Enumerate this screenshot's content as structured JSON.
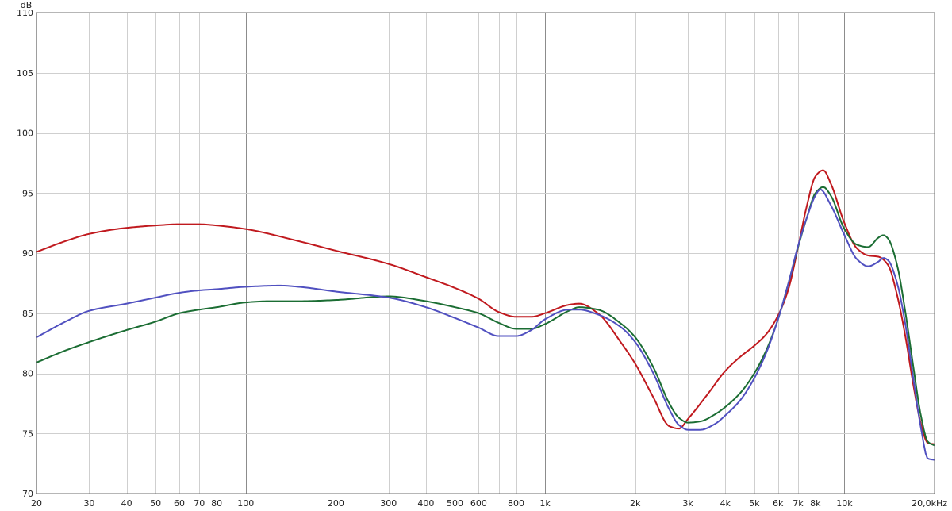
{
  "chart_data": {
    "type": "line",
    "x_scale": "log",
    "xlim": [
      20,
      20000
    ],
    "ylim": [
      70,
      110
    ],
    "ylabel": "dB",
    "x_unit_label": "20,0kHz",
    "grid": true,
    "y_ticks": [
      70,
      75,
      80,
      85,
      90,
      95,
      100,
      105,
      110
    ],
    "x_ticks": [
      {
        "value": 20,
        "label": "20"
      },
      {
        "value": 30,
        "label": "30"
      },
      {
        "value": 40,
        "label": "40"
      },
      {
        "value": 50,
        "label": "50"
      },
      {
        "value": 60,
        "label": "60"
      },
      {
        "value": 70,
        "label": "70"
      },
      {
        "value": 80,
        "label": "80"
      },
      {
        "value": 100,
        "label": "100"
      },
      {
        "value": 200,
        "label": "200"
      },
      {
        "value": 300,
        "label": "300"
      },
      {
        "value": 400,
        "label": "400"
      },
      {
        "value": 500,
        "label": "500"
      },
      {
        "value": 600,
        "label": "600"
      },
      {
        "value": 800,
        "label": "800"
      },
      {
        "value": 1000,
        "label": "1k"
      },
      {
        "value": 2000,
        "label": "2k"
      },
      {
        "value": 3000,
        "label": "3k"
      },
      {
        "value": 4000,
        "label": "4k"
      },
      {
        "value": 5000,
        "label": "5k"
      },
      {
        "value": 6000,
        "label": "6k"
      },
      {
        "value": 7000,
        "label": "7k"
      },
      {
        "value": 8000,
        "label": "8k"
      },
      {
        "value": 10000,
        "label": "10k"
      }
    ],
    "series": [
      {
        "color": "#c0191e",
        "points": [
          [
            20,
            90.1
          ],
          [
            25,
            91.0
          ],
          [
            30,
            91.6
          ],
          [
            40,
            92.1
          ],
          [
            50,
            92.3
          ],
          [
            60,
            92.4
          ],
          [
            70,
            92.4
          ],
          [
            80,
            92.3
          ],
          [
            100,
            92.0
          ],
          [
            150,
            91.0
          ],
          [
            200,
            90.2
          ],
          [
            300,
            89.1
          ],
          [
            400,
            88.0
          ],
          [
            500,
            87.1
          ],
          [
            600,
            86.2
          ],
          [
            700,
            85.1
          ],
          [
            800,
            84.7
          ],
          [
            900,
            84.7
          ],
          [
            1000,
            85.0
          ],
          [
            1200,
            85.7
          ],
          [
            1300,
            85.8
          ],
          [
            1500,
            85.0
          ],
          [
            1800,
            82.5
          ],
          [
            2000,
            80.8
          ],
          [
            2300,
            78.0
          ],
          [
            2600,
            75.6
          ],
          [
            2800,
            75.4
          ],
          [
            3000,
            76.2
          ],
          [
            3500,
            78.3
          ],
          [
            4000,
            80.2
          ],
          [
            4500,
            81.4
          ],
          [
            5000,
            82.3
          ],
          [
            5500,
            83.3
          ],
          [
            6000,
            84.8
          ],
          [
            6500,
            87.0
          ],
          [
            7000,
            90.5
          ],
          [
            7500,
            94.0
          ],
          [
            8000,
            96.4
          ],
          [
            8500,
            96.9
          ],
          [
            9000,
            95.8
          ],
          [
            10000,
            92.5
          ],
          [
            11000,
            90.4
          ],
          [
            12000,
            89.8
          ],
          [
            13000,
            89.7
          ],
          [
            14000,
            89.0
          ],
          [
            15000,
            86.5
          ],
          [
            16000,
            83.0
          ],
          [
            17000,
            79.0
          ],
          [
            18000,
            75.8
          ],
          [
            19000,
            74.2
          ],
          [
            20000,
            74.1
          ]
        ]
      },
      {
        "color": "#1b6d33",
        "points": [
          [
            20,
            80.9
          ],
          [
            25,
            81.9
          ],
          [
            30,
            82.6
          ],
          [
            40,
            83.6
          ],
          [
            50,
            84.3
          ],
          [
            60,
            85.0
          ],
          [
            70,
            85.3
          ],
          [
            80,
            85.5
          ],
          [
            100,
            85.9
          ],
          [
            120,
            86.0
          ],
          [
            150,
            86.0
          ],
          [
            200,
            86.1
          ],
          [
            300,
            86.4
          ],
          [
            400,
            86.0
          ],
          [
            500,
            85.5
          ],
          [
            600,
            85.0
          ],
          [
            700,
            84.2
          ],
          [
            800,
            83.7
          ],
          [
            900,
            83.7
          ],
          [
            1000,
            84.1
          ],
          [
            1200,
            85.2
          ],
          [
            1300,
            85.5
          ],
          [
            1500,
            85.3
          ],
          [
            1800,
            84.1
          ],
          [
            2000,
            83.0
          ],
          [
            2300,
            80.5
          ],
          [
            2600,
            77.5
          ],
          [
            2800,
            76.3
          ],
          [
            3000,
            75.9
          ],
          [
            3300,
            76.0
          ],
          [
            3700,
            76.6
          ],
          [
            4000,
            77.2
          ],
          [
            4500,
            78.4
          ],
          [
            5000,
            80.0
          ],
          [
            5500,
            82.0
          ],
          [
            6000,
            84.5
          ],
          [
            6500,
            87.5
          ],
          [
            7000,
            90.5
          ],
          [
            7500,
            93.0
          ],
          [
            8000,
            95.0
          ],
          [
            8500,
            95.5
          ],
          [
            9000,
            94.8
          ],
          [
            10000,
            92.0
          ],
          [
            11000,
            90.7
          ],
          [
            12000,
            90.5
          ],
          [
            13000,
            91.3
          ],
          [
            13500,
            91.5
          ],
          [
            14000,
            91.2
          ],
          [
            15000,
            89.0
          ],
          [
            16000,
            85.0
          ],
          [
            17000,
            80.5
          ],
          [
            18000,
            76.5
          ],
          [
            19000,
            74.3
          ],
          [
            20000,
            74.0
          ]
        ]
      },
      {
        "color": "#5050c0",
        "points": [
          [
            20,
            83.0
          ],
          [
            25,
            84.3
          ],
          [
            30,
            85.2
          ],
          [
            40,
            85.8
          ],
          [
            50,
            86.3
          ],
          [
            60,
            86.7
          ],
          [
            70,
            86.9
          ],
          [
            80,
            87.0
          ],
          [
            100,
            87.2
          ],
          [
            130,
            87.3
          ],
          [
            150,
            87.2
          ],
          [
            200,
            86.8
          ],
          [
            300,
            86.3
          ],
          [
            400,
            85.5
          ],
          [
            500,
            84.6
          ],
          [
            600,
            83.8
          ],
          [
            700,
            83.1
          ],
          [
            800,
            83.1
          ],
          [
            900,
            83.6
          ],
          [
            1000,
            84.5
          ],
          [
            1200,
            85.3
          ],
          [
            1300,
            85.3
          ],
          [
            1500,
            84.9
          ],
          [
            1800,
            83.8
          ],
          [
            2000,
            82.6
          ],
          [
            2300,
            80.0
          ],
          [
            2600,
            77.0
          ],
          [
            2800,
            75.7
          ],
          [
            3000,
            75.3
          ],
          [
            3300,
            75.3
          ],
          [
            3700,
            75.8
          ],
          [
            4000,
            76.5
          ],
          [
            4500,
            77.8
          ],
          [
            5000,
            79.6
          ],
          [
            5500,
            81.8
          ],
          [
            6000,
            84.5
          ],
          [
            6500,
            87.5
          ],
          [
            7000,
            90.6
          ],
          [
            7500,
            93.0
          ],
          [
            8000,
            94.8
          ],
          [
            8300,
            95.3
          ],
          [
            9000,
            94.0
          ],
          [
            10000,
            91.5
          ],
          [
            11000,
            89.5
          ],
          [
            12000,
            88.9
          ],
          [
            13000,
            89.3
          ],
          [
            13500,
            89.6
          ],
          [
            14000,
            89.4
          ],
          [
            15000,
            87.5
          ],
          [
            16000,
            84.0
          ],
          [
            17000,
            79.5
          ],
          [
            18000,
            75.5
          ],
          [
            19000,
            72.9
          ],
          [
            20000,
            72.8
          ]
        ]
      }
    ]
  }
}
